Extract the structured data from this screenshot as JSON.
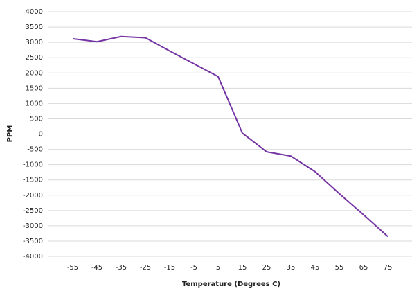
{
  "chart_data": {
    "type": "line",
    "x_label": "Temperature (Degrees C)",
    "y_label": "PPM",
    "x": [
      -55,
      -45,
      -35,
      -25,
      -15,
      -5,
      5,
      15,
      25,
      35,
      45,
      55,
      65,
      75
    ],
    "series": [
      {
        "name": "PPM",
        "color": "#7434a4",
        "values": [
          3120,
          3020,
          3190,
          3150,
          2720,
          2300,
          1880,
          30,
          -580,
          -720,
          -1230,
          -1950,
          -2640,
          -3350
        ]
      }
    ],
    "xlim": [
      -65,
      85
    ],
    "xticks": [
      -55,
      -45,
      -35,
      -25,
      -15,
      -5,
      5,
      15,
      25,
      35,
      45,
      55,
      65,
      75
    ],
    "ylim": [
      -4000,
      4000
    ],
    "yticks": [
      -4000,
      -3500,
      -3000,
      -2500,
      -2000,
      -1500,
      -1000,
      -500,
      0,
      500,
      1000,
      1500,
      2000,
      2500,
      3000,
      3500,
      4000
    ],
    "grid": true,
    "legend": false
  }
}
